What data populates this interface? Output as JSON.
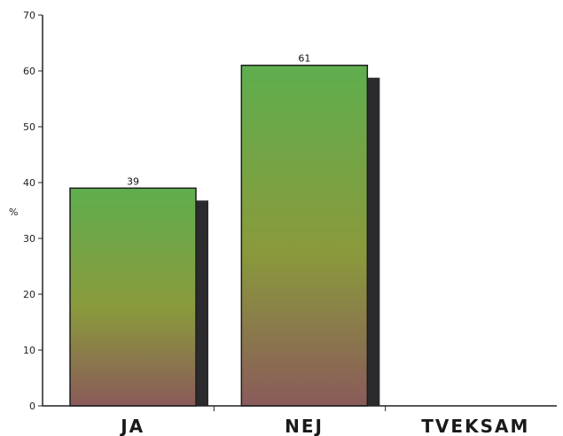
{
  "chart_data": {
    "type": "bar",
    "categories": [
      "Ja",
      "Nej",
      "Tveksam"
    ],
    "category_labels": [
      "JA",
      "NEJ",
      "TVEKSAM"
    ],
    "values": [
      39,
      61,
      0
    ],
    "data_labels": [
      "39",
      "61",
      ""
    ],
    "title": "",
    "xlabel": "",
    "ylabel": "%",
    "ylim": [
      0,
      70
    ],
    "yticks": [
      0,
      10,
      20,
      30,
      40,
      50,
      60,
      70
    ],
    "grid": false,
    "legend": "none",
    "colors": {
      "bar_top": "#5fae4e",
      "bar_mid": "#8a9a3c",
      "bar_bottom": "#8a5a5a",
      "shadow": "#2b2b2e",
      "axis": "#222222"
    }
  }
}
